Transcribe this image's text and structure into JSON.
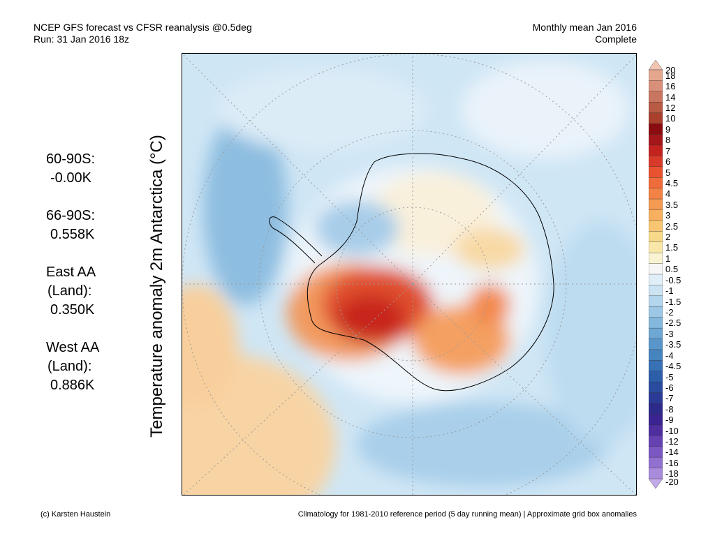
{
  "header": {
    "line1": "NCEP GFS forecast vs CFSR reanalysis @0.5deg",
    "line2": "Run: 31 Jan 2016 18z",
    "right1": "Monthly mean Jan 2016",
    "right2": "Complete"
  },
  "stats": [
    {
      "label": "60-90S:",
      "value": "-0.00K"
    },
    {
      "label": "66-90S:",
      "value": "0.558K"
    },
    {
      "label": "East AA",
      "label2": "(Land):",
      "value": "0.350K"
    },
    {
      "label": "West AA",
      "label2": "(Land):",
      "value": "0.886K"
    }
  ],
  "axis_label": "Temperature anomaly 2m Antarctica (°C)",
  "colorbar": {
    "labels": [
      "20",
      "18",
      "16",
      "14",
      "12",
      "10",
      "9",
      "8",
      "7",
      "6",
      "5",
      "4.5",
      "4",
      "3.5",
      "3",
      "2.5",
      "2",
      "1.5",
      "1",
      "0.5",
      "-0.5",
      "-1",
      "-1.5",
      "-2",
      "-2.5",
      "-3",
      "-3.5",
      "-4",
      "-4.5",
      "-5",
      "-6",
      "-7",
      "-8",
      "-9",
      "-10",
      "-12",
      "-14",
      "-16",
      "-18",
      "-20"
    ],
    "colors": [
      "#f2c5b3",
      "#e4a78e",
      "#d9907a",
      "#c97560",
      "#b85a44",
      "#a8402c",
      "#8a0c10",
      "#a5161a",
      "#c3221f",
      "#d83a2a",
      "#e8522f",
      "#ef6b3a",
      "#f28245",
      "#f59a52",
      "#f7b060",
      "#f8c571",
      "#f8d98a",
      "#f9e7a9",
      "#faf3d2",
      "#f6f6f6",
      "#e0eef8",
      "#cbe3f3",
      "#b4d6ed",
      "#9cc8e6",
      "#84b8dd",
      "#6ea7d4",
      "#5996ca",
      "#4684c0",
      "#3771b6",
      "#2c5eaa",
      "#2a4ca0",
      "#2a3a96",
      "#2c2a8a",
      "#3b2391",
      "#4f2ea0",
      "#6541b2",
      "#7a57c2",
      "#9170d0",
      "#a98bdc",
      "#c2a9e8"
    ]
  },
  "footer": {
    "left": "(c) Karsten Haustein",
    "right": "Climatology for 1981-2010 reference period (5 day running mean) | Approximate grid box anomalies"
  }
}
